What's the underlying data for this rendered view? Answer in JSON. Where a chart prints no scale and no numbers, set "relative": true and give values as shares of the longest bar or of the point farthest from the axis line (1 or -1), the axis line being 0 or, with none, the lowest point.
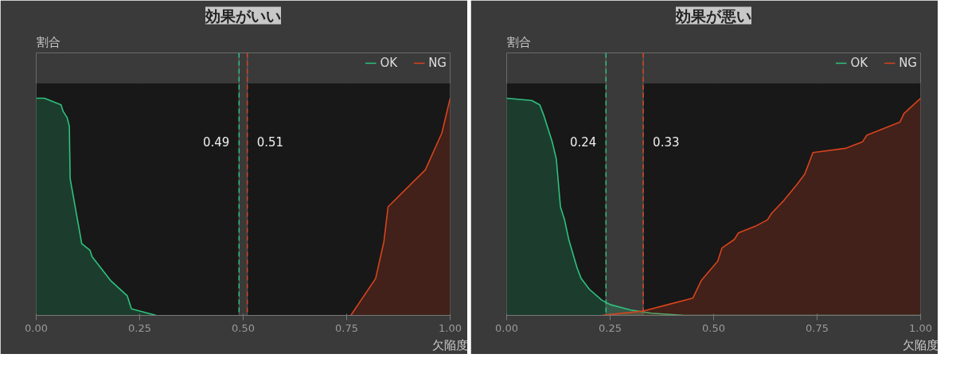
{
  "chart_data": [
    {
      "type": "area",
      "title": "効果がいい",
      "xlabel": "欠陥度",
      "ylabel": "割合",
      "relative": true,
      "xlim": [
        0,
        1
      ],
      "xticks": [
        {
          "value": 0,
          "label": "0.00"
        },
        {
          "value": 0.25,
          "label": "0.25"
        },
        {
          "value": 0.5,
          "label": "0.50"
        },
        {
          "value": 0.75,
          "label": "0.75"
        },
        {
          "value": 1,
          "label": "1.00"
        }
      ],
      "grid": "x",
      "legend": "top right",
      "series": [
        {
          "name": "OK",
          "color": "#2ec27e",
          "x": [
            0,
            0.02,
            0.06,
            0.065,
            0.075,
            0.08,
            0.082,
            0.11,
            0.13,
            0.135,
            0.18,
            0.22,
            0.23,
            0.29
          ],
          "values": [
            1,
            1,
            0.97,
            0.94,
            0.91,
            0.87,
            0.63,
            0.33,
            0.3,
            0.27,
            0.16,
            0.09,
            0.03,
            0
          ]
        },
        {
          "name": "NG",
          "color": "#d8431e",
          "x": [
            0.76,
            0.82,
            0.84,
            0.85,
            0.94,
            0.98,
            1
          ],
          "values": [
            0,
            0.17,
            0.34,
            0.5,
            0.67,
            0.84,
            1
          ]
        }
      ],
      "ref_lines": [
        {
          "axis": "x",
          "value": 0.49,
          "label": "0.49",
          "color": "#2ec27e",
          "line_style": "dashed"
        },
        {
          "axis": "x",
          "value": 0.51,
          "label": "0.51",
          "color": "#d8431e",
          "line_style": "dashed"
        }
      ],
      "bands": [
        {
          "axis": "x",
          "from": 0.49,
          "to": 0.51,
          "color": "#3a3a3a"
        }
      ]
    },
    {
      "type": "area",
      "title": "効果が悪い",
      "xlabel": "欠陥度",
      "ylabel": "割合",
      "relative": true,
      "xlim": [
        0,
        1
      ],
      "xticks": [
        {
          "value": 0,
          "label": "0.00"
        },
        {
          "value": 0.25,
          "label": "0.25"
        },
        {
          "value": 0.5,
          "label": "0.50"
        },
        {
          "value": 0.75,
          "label": "0.75"
        },
        {
          "value": 1,
          "label": "1.00"
        }
      ],
      "grid": "x",
      "legend": "top right",
      "series": [
        {
          "name": "OK",
          "color": "#2ec27e",
          "x": [
            0,
            0.06,
            0.08,
            0.09,
            0.11,
            0.12,
            0.13,
            0.14,
            0.15,
            0.17,
            0.18,
            0.2,
            0.23,
            0.25,
            0.3,
            0.35,
            0.43,
            1
          ],
          "values": [
            1,
            0.99,
            0.97,
            0.92,
            0.8,
            0.72,
            0.5,
            0.44,
            0.35,
            0.22,
            0.17,
            0.12,
            0.07,
            0.05,
            0.025,
            0.01,
            0,
            0
          ]
        },
        {
          "name": "NG",
          "color": "#d8431e",
          "x": [
            0.23,
            0.33,
            0.39,
            0.45,
            0.47,
            0.51,
            0.52,
            0.55,
            0.56,
            0.6,
            0.63,
            0.64,
            0.65,
            0.67,
            0.7,
            0.72,
            0.74,
            0.82,
            0.86,
            0.87,
            0.91,
            0.95,
            0.96,
            1
          ],
          "values": [
            0,
            0.02,
            0.05,
            0.08,
            0.16,
            0.25,
            0.31,
            0.35,
            0.38,
            0.41,
            0.44,
            0.47,
            0.49,
            0.53,
            0.6,
            0.65,
            0.75,
            0.77,
            0.8,
            0.83,
            0.86,
            0.89,
            0.93,
            1
          ]
        }
      ],
      "ref_lines": [
        {
          "axis": "x",
          "value": 0.24,
          "label": "0.24",
          "color": "#2ec27e",
          "line_style": "dashed"
        },
        {
          "axis": "x",
          "value": 0.33,
          "label": "0.33",
          "color": "#d8431e",
          "line_style": "dashed"
        }
      ],
      "bands": [
        {
          "axis": "x",
          "from": 0.24,
          "to": 0.33,
          "color": "#3a3a3a"
        }
      ]
    }
  ]
}
